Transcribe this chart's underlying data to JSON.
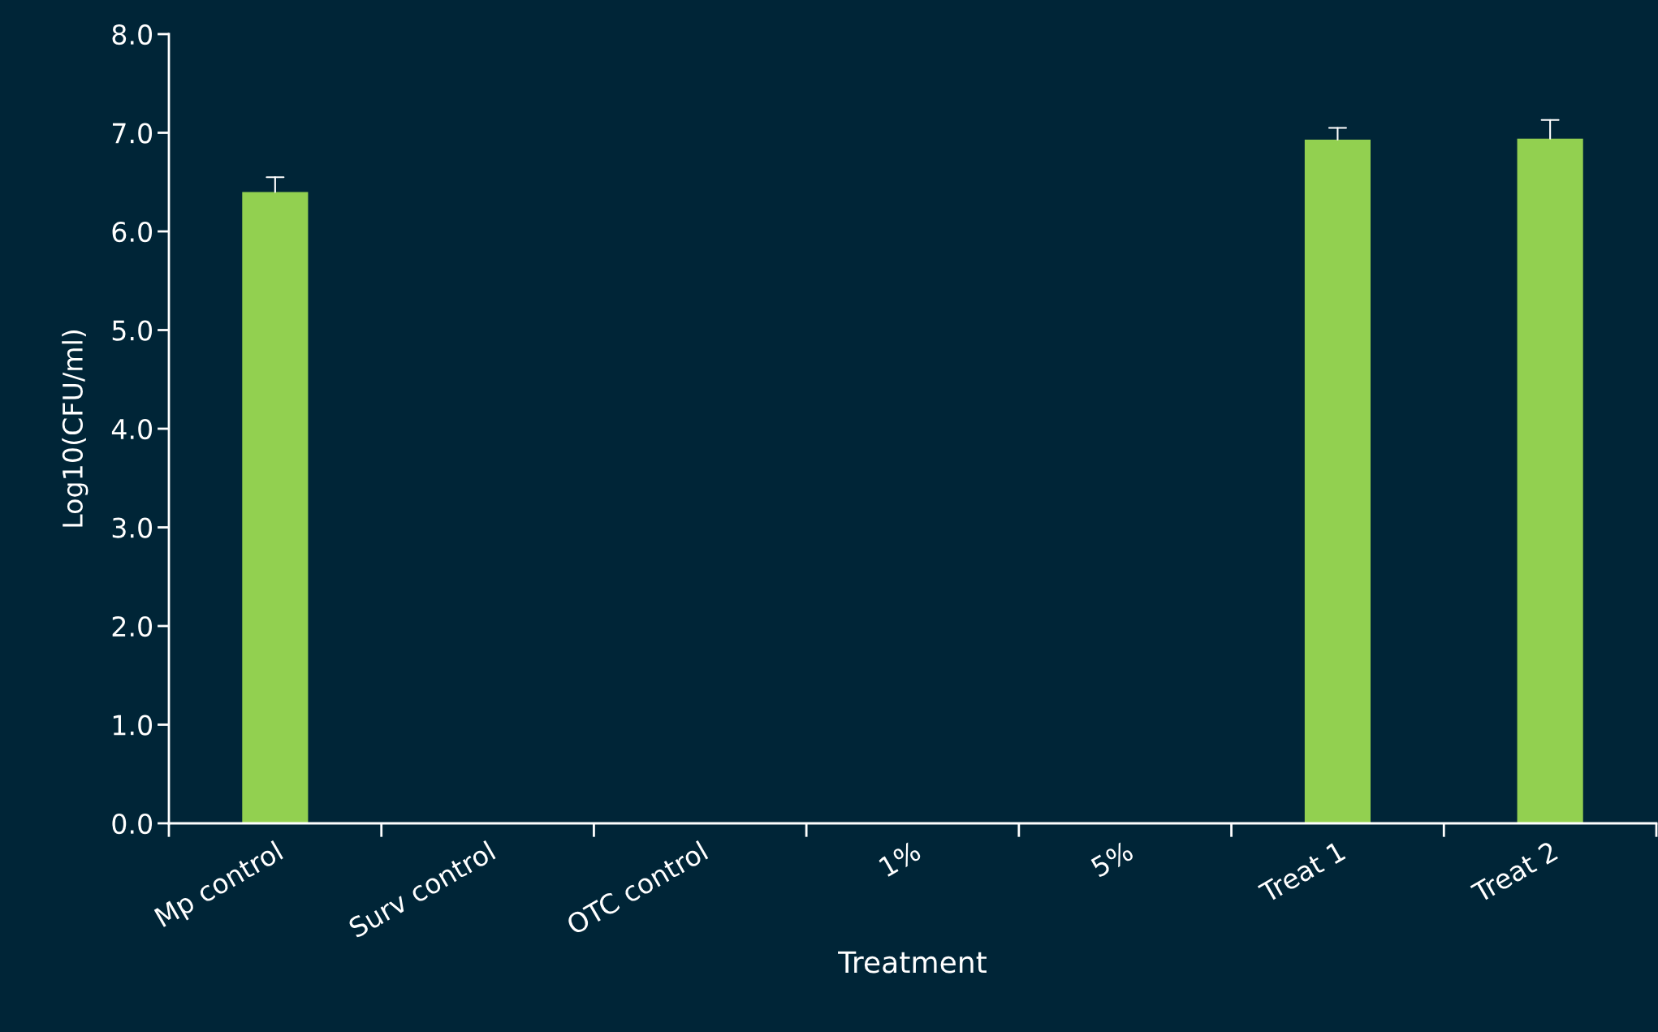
{
  "chart_data": {
    "type": "bar",
    "xlabel": "Treatment",
    "ylabel": "Log10(CFU/ml)",
    "categories": [
      "Mp control",
      "Surv control",
      "OTC control",
      "1%",
      "5%",
      "Treat 1",
      "Treat 2"
    ],
    "values": [
      6.4,
      null,
      null,
      null,
      null,
      6.93,
      6.94
    ],
    "errors": [
      [
        6.4,
        6.55
      ],
      null,
      null,
      null,
      null,
      [
        6.93,
        7.05
      ],
      [
        6.94,
        7.13
      ]
    ],
    "color": "#92d050",
    "ylim": [
      0,
      8
    ],
    "yticks": [
      {
        "value": 0,
        "label": "0.0"
      },
      {
        "value": 1,
        "label": "1.0"
      },
      {
        "value": 2,
        "label": "2.0"
      },
      {
        "value": 3,
        "label": "3.0"
      },
      {
        "value": 4,
        "label": "4.0"
      },
      {
        "value": 5,
        "label": "5.0"
      },
      {
        "value": 6,
        "label": "6.0"
      },
      {
        "value": 7,
        "label": "7.0"
      },
      {
        "value": 8,
        "label": "8.0"
      }
    ],
    "grid": false,
    "legend": false
  }
}
